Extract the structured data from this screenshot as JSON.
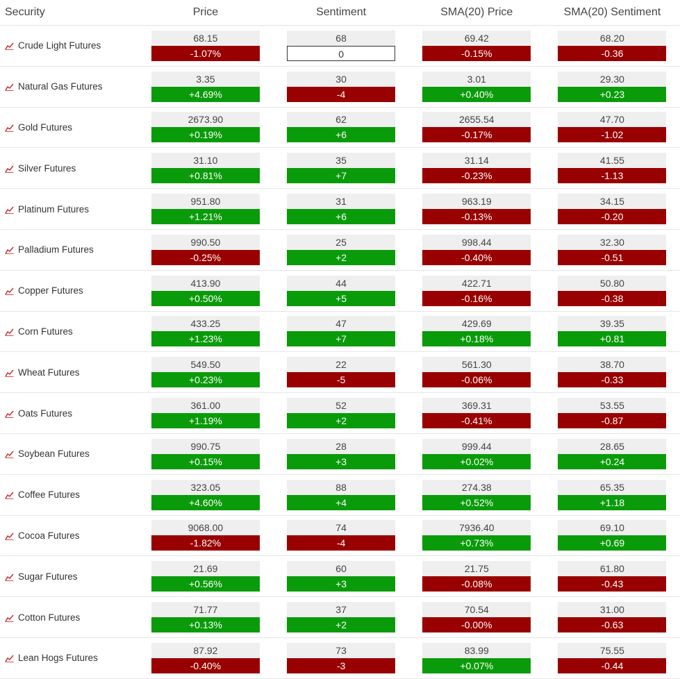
{
  "headers": {
    "security": "Security",
    "price": "Price",
    "sentiment": "Sentiment",
    "sma_price": "SMA(20) Price",
    "sma_sentiment": "SMA(20) Sentiment"
  },
  "colors": {
    "positive": "#0a9b0a",
    "negative": "#990000",
    "icon": "#cc2222"
  },
  "rows": [
    {
      "name": "Crude Light Futures",
      "price": "68.15",
      "price_chg": "-1.07%",
      "sent": "68",
      "sent_chg": "0",
      "sma_price": "69.42",
      "sma_price_chg": "-0.15%",
      "sma_sent": "68.20",
      "sma_sent_chg": "-0.36"
    },
    {
      "name": "Natural Gas Futures",
      "price": "3.35",
      "price_chg": "+4.69%",
      "sent": "30",
      "sent_chg": "-4",
      "sma_price": "3.01",
      "sma_price_chg": "+0.40%",
      "sma_sent": "29.30",
      "sma_sent_chg": "+0.23"
    },
    {
      "name": "Gold Futures",
      "price": "2673.90",
      "price_chg": "+0.19%",
      "sent": "62",
      "sent_chg": "+6",
      "sma_price": "2655.54",
      "sma_price_chg": "-0.17%",
      "sma_sent": "47.70",
      "sma_sent_chg": "-1.02"
    },
    {
      "name": "Silver Futures",
      "price": "31.10",
      "price_chg": "+0.81%",
      "sent": "35",
      "sent_chg": "+7",
      "sma_price": "31.14",
      "sma_price_chg": "-0.23%",
      "sma_sent": "41.55",
      "sma_sent_chg": "-1.13"
    },
    {
      "name": "Platinum Futures",
      "price": "951.80",
      "price_chg": "+1.21%",
      "sent": "31",
      "sent_chg": "+6",
      "sma_price": "963.19",
      "sma_price_chg": "-0.13%",
      "sma_sent": "34.15",
      "sma_sent_chg": "-0.20"
    },
    {
      "name": "Palladium Futures",
      "price": "990.50",
      "price_chg": "-0.25%",
      "sent": "25",
      "sent_chg": "+2",
      "sma_price": "998.44",
      "sma_price_chg": "-0.40%",
      "sma_sent": "32.30",
      "sma_sent_chg": "-0.51"
    },
    {
      "name": "Copper Futures",
      "price": "413.90",
      "price_chg": "+0.50%",
      "sent": "44",
      "sent_chg": "+5",
      "sma_price": "422.71",
      "sma_price_chg": "-0.16%",
      "sma_sent": "50.80",
      "sma_sent_chg": "-0.38"
    },
    {
      "name": "Corn Futures",
      "price": "433.25",
      "price_chg": "+1.23%",
      "sent": "47",
      "sent_chg": "+7",
      "sma_price": "429.69",
      "sma_price_chg": "+0.18%",
      "sma_sent": "39.35",
      "sma_sent_chg": "+0.81"
    },
    {
      "name": "Wheat Futures",
      "price": "549.50",
      "price_chg": "+0.23%",
      "sent": "22",
      "sent_chg": "-5",
      "sma_price": "561.30",
      "sma_price_chg": "-0.06%",
      "sma_sent": "38.70",
      "sma_sent_chg": "-0.33"
    },
    {
      "name": "Oats Futures",
      "price": "361.00",
      "price_chg": "+1.19%",
      "sent": "52",
      "sent_chg": "+2",
      "sma_price": "369.31",
      "sma_price_chg": "-0.41%",
      "sma_sent": "53.55",
      "sma_sent_chg": "-0.87"
    },
    {
      "name": "Soybean Futures",
      "price": "990.75",
      "price_chg": "+0.15%",
      "sent": "28",
      "sent_chg": "+3",
      "sma_price": "999.44",
      "sma_price_chg": "+0.02%",
      "sma_sent": "28.65",
      "sma_sent_chg": "+0.24"
    },
    {
      "name": "Coffee Futures",
      "price": "323.05",
      "price_chg": "+4.60%",
      "sent": "88",
      "sent_chg": "+4",
      "sma_price": "274.38",
      "sma_price_chg": "+0.52%",
      "sma_sent": "65.35",
      "sma_sent_chg": "+1.18"
    },
    {
      "name": "Cocoa Futures",
      "price": "9068.00",
      "price_chg": "-1.82%",
      "sent": "74",
      "sent_chg": "-4",
      "sma_price": "7936.40",
      "sma_price_chg": "+0.73%",
      "sma_sent": "69.10",
      "sma_sent_chg": "+0.69"
    },
    {
      "name": "Sugar Futures",
      "price": "21.69",
      "price_chg": "+0.56%",
      "sent": "60",
      "sent_chg": "+3",
      "sma_price": "21.75",
      "sma_price_chg": "-0.08%",
      "sma_sent": "61.80",
      "sma_sent_chg": "-0.43"
    },
    {
      "name": "Cotton Futures",
      "price": "71.77",
      "price_chg": "+0.13%",
      "sent": "37",
      "sent_chg": "+2",
      "sma_price": "70.54",
      "sma_price_chg": "-0.00%",
      "sma_sent": "31.00",
      "sma_sent_chg": "-0.63"
    },
    {
      "name": "Lean Hogs Futures",
      "price": "87.92",
      "price_chg": "-0.40%",
      "sent": "73",
      "sent_chg": "-3",
      "sma_price": "83.99",
      "sma_price_chg": "+0.07%",
      "sma_sent": "75.55",
      "sma_sent_chg": "-0.44"
    }
  ]
}
